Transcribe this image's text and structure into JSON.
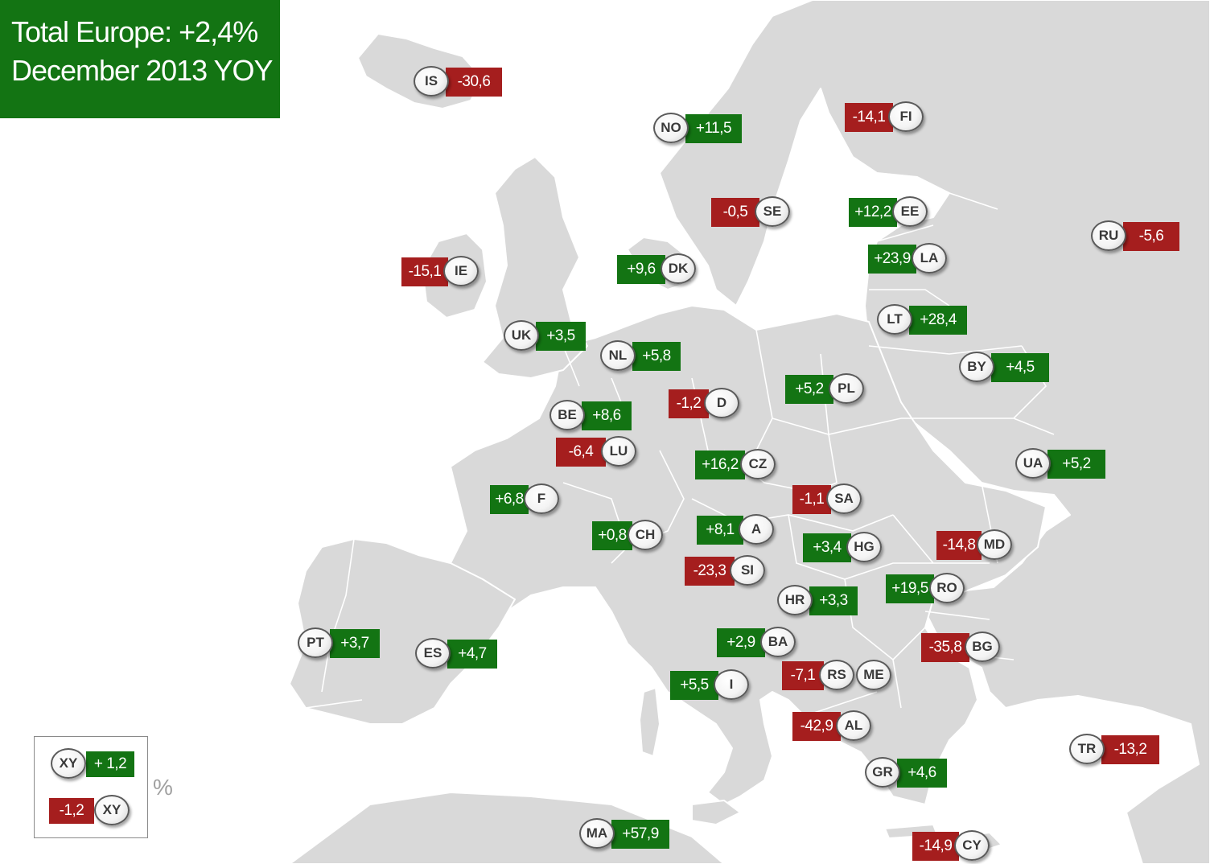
{
  "title": {
    "line1": "Total Europe: +2,4%",
    "line2": "December 2013 YOY"
  },
  "colors": {
    "positive": "#137413",
    "negative": "#a51e1e",
    "land": "#d9d9d9"
  },
  "countries": [
    {
      "code": "IS",
      "value": "-30,6",
      "sign": "neg"
    },
    {
      "code": "NO",
      "value": "+11,5",
      "sign": "pos"
    },
    {
      "code": "FI",
      "value": "-14,1",
      "sign": "neg"
    },
    {
      "code": "SE",
      "value": "-0,5",
      "sign": "neg"
    },
    {
      "code": "EE",
      "value": "+12,2",
      "sign": "pos"
    },
    {
      "code": "RU",
      "value": "-5,6",
      "sign": "neg"
    },
    {
      "code": "LA",
      "value": "+23,9",
      "sign": "pos"
    },
    {
      "code": "IE",
      "value": "-15,1",
      "sign": "neg"
    },
    {
      "code": "DK",
      "value": "+9,6",
      "sign": "pos"
    },
    {
      "code": "LT",
      "value": "+28,4",
      "sign": "pos"
    },
    {
      "code": "UK",
      "value": "+3,5",
      "sign": "pos"
    },
    {
      "code": "NL",
      "value": "+5,8",
      "sign": "pos"
    },
    {
      "code": "BY",
      "value": "+4,5",
      "sign": "pos"
    },
    {
      "code": "PL",
      "value": "+5,2",
      "sign": "pos"
    },
    {
      "code": "D",
      "value": "-1,2",
      "sign": "neg"
    },
    {
      "code": "BE",
      "value": "+8,6",
      "sign": "pos"
    },
    {
      "code": "LU",
      "value": "-6,4",
      "sign": "neg"
    },
    {
      "code": "CZ",
      "value": "+16,2",
      "sign": "pos"
    },
    {
      "code": "UA",
      "value": "+5,2",
      "sign": "pos"
    },
    {
      "code": "F",
      "value": "+6,8",
      "sign": "pos"
    },
    {
      "code": "SA",
      "value": "-1,1",
      "sign": "neg"
    },
    {
      "code": "CH",
      "value": "+0,8",
      "sign": "pos"
    },
    {
      "code": "A",
      "value": "+8,1",
      "sign": "pos"
    },
    {
      "code": "MD",
      "value": "-14,8",
      "sign": "neg"
    },
    {
      "code": "HG",
      "value": "+3,4",
      "sign": "pos"
    },
    {
      "code": "SI",
      "value": "-23,3",
      "sign": "neg"
    },
    {
      "code": "RO",
      "value": "+19,5",
      "sign": "pos"
    },
    {
      "code": "HR",
      "value": "+3,3",
      "sign": "pos"
    },
    {
      "code": "PT",
      "value": "+3,7",
      "sign": "pos"
    },
    {
      "code": "ES",
      "value": "+4,7",
      "sign": "pos"
    },
    {
      "code": "BA",
      "value": "+2,9",
      "sign": "pos"
    },
    {
      "code": "BG",
      "value": "-35,8",
      "sign": "neg"
    },
    {
      "code": "RS",
      "value": "-7,1",
      "sign": "neg"
    },
    {
      "code": "ME",
      "value": "",
      "sign": "none"
    },
    {
      "code": "I",
      "value": "+5,5",
      "sign": "pos"
    },
    {
      "code": "AL",
      "value": "-42,9",
      "sign": "neg"
    },
    {
      "code": "TR",
      "value": "-13,2",
      "sign": "neg"
    },
    {
      "code": "GR",
      "value": "+4,6",
      "sign": "pos"
    },
    {
      "code": "MA",
      "value": "+57,9",
      "sign": "pos"
    },
    {
      "code": "CY",
      "value": "-14,9",
      "sign": "neg"
    }
  ],
  "legend": {
    "positive_example": {
      "code": "XY",
      "value": "+ 1,2"
    },
    "negative_example": {
      "code": "XY",
      "value": "-1,2"
    },
    "unit": "%"
  }
}
